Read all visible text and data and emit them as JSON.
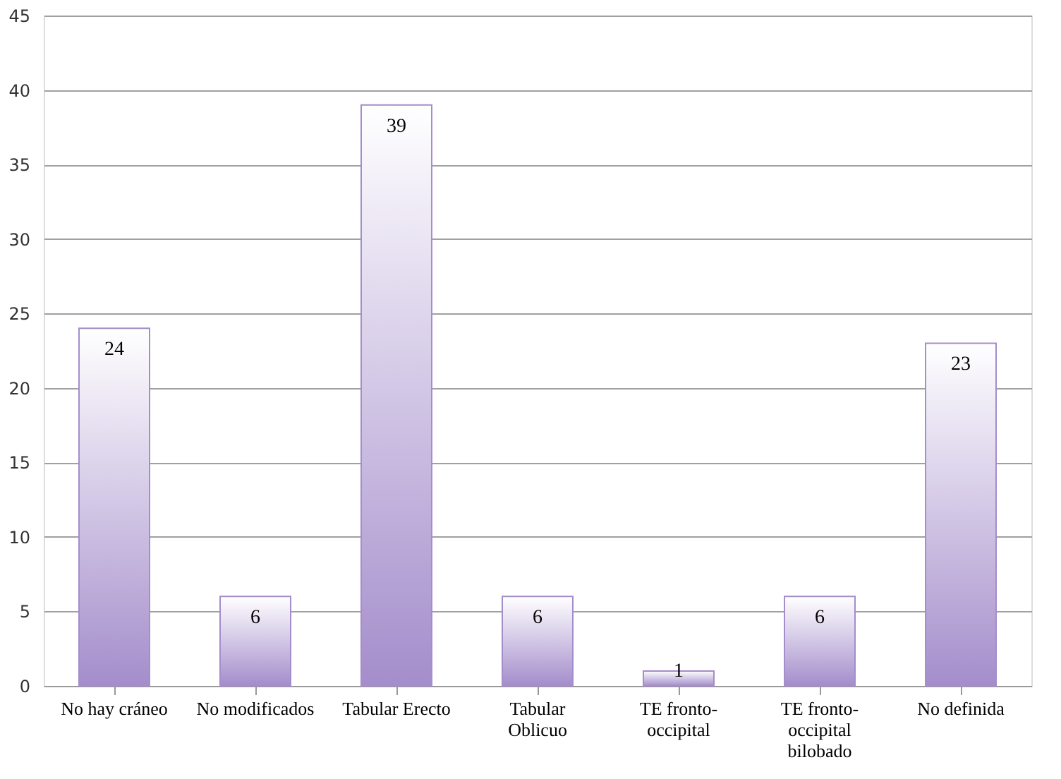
{
  "chart_data": {
    "type": "bar",
    "categories": [
      "No hay cráneo",
      "No modificados",
      "Tabular Erecto",
      "Tabular\nOblicuo",
      "TE fronto-\noccipital",
      "TE fronto-\noccipital\nbilobado",
      "No definida"
    ],
    "values": [
      24,
      6,
      39,
      6,
      1,
      6,
      23
    ],
    "color": "#a48dcb",
    "ylim": [
      0,
      45
    ],
    "yticks": [
      0,
      5,
      10,
      15,
      20,
      25,
      30,
      35,
      40,
      45
    ],
    "grid": "y",
    "data_labels": true
  }
}
